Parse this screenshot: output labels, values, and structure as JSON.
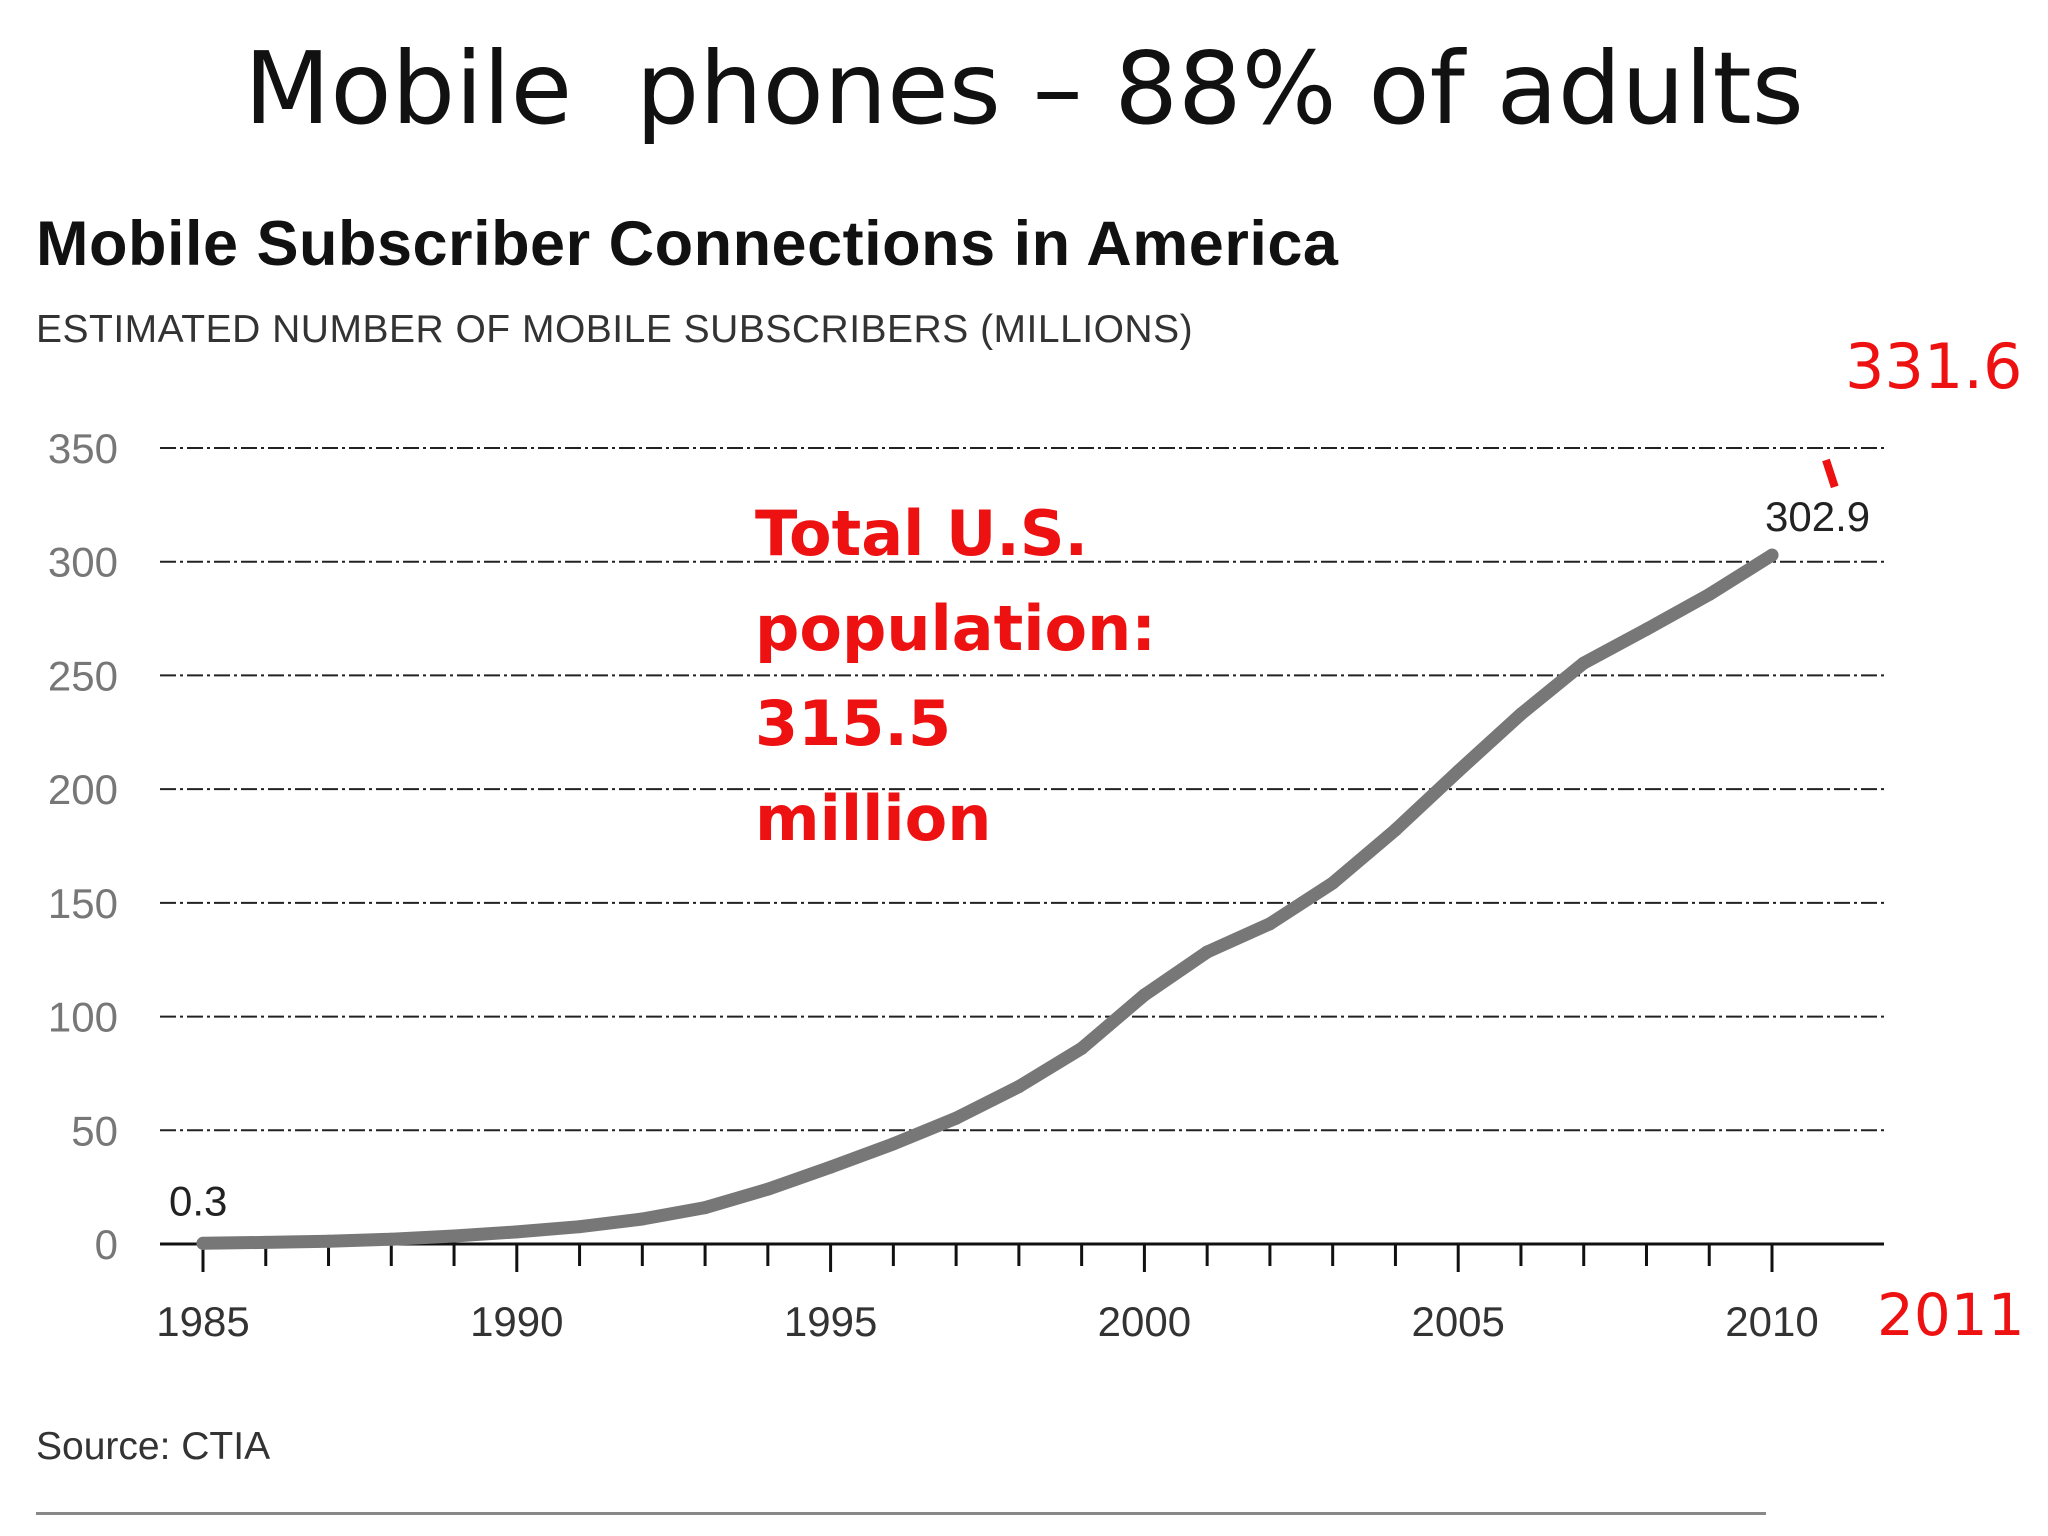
{
  "slide": {
    "title": "Mobile  phones – 88% of adults"
  },
  "chart_data": {
    "type": "line",
    "title": "Mobile Subscriber Connections in America",
    "subtitle": "ESTIMATED NUMBER OF MOBILE SUBSCRIBERS (MILLIONS)",
    "source": "Source: CTIA",
    "xlabel": "",
    "ylabel": "",
    "xlim": [
      1985,
      2011
    ],
    "ylim": [
      0,
      350
    ],
    "yticks": [
      0,
      50,
      100,
      150,
      200,
      250,
      300,
      350
    ],
    "xtick_labels": [
      "1985",
      "1990",
      "1995",
      "2000",
      "2005",
      "2010"
    ],
    "xtick_values": [
      1985,
      1990,
      1995,
      2000,
      2005,
      2010
    ],
    "grid": true,
    "series": [
      {
        "color": "#777777",
        "x": [
          1985,
          1986,
          1987,
          1988,
          1989,
          1990,
          1991,
          1992,
          1993,
          1994,
          1995,
          1996,
          1997,
          1998,
          1999,
          2000,
          2001,
          2002,
          2003,
          2004,
          2005,
          2006,
          2007,
          2008,
          2009,
          2010
        ],
        "y": [
          0.3,
          0.7,
          1.2,
          2.1,
          3.5,
          5.3,
          7.6,
          11.0,
          16.0,
          24.1,
          33.8,
          44.0,
          55.3,
          69.2,
          86.0,
          109.5,
          128.4,
          140.8,
          158.7,
          182.1,
          207.9,
          233.0,
          255.4,
          270.3,
          285.6,
          302.9
        ]
      }
    ],
    "data_labels": [
      {
        "x": 1985,
        "y": 0.3,
        "text": "0.3"
      },
      {
        "x": 2010,
        "y": 302.9,
        "text": "302.9"
      }
    ],
    "annotations": {
      "population_lines": [
        "Total U.S.",
        "population:",
        "315.5",
        "million"
      ],
      "extra_year_label": "2011",
      "extra_year": 2011,
      "extra_value_label": "331.6",
      "extra_value": 331.6,
      "color": "#ee1111"
    }
  }
}
